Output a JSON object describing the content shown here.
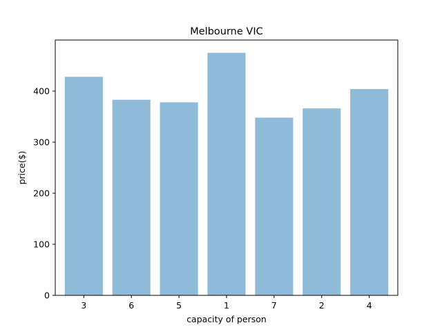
{
  "chart_data": {
    "type": "bar",
    "title": "Melbourne VIC",
    "xlabel": "capacity of person",
    "ylabel": "price($)",
    "categories": [
      "3",
      "6",
      "5",
      "1",
      "7",
      "2",
      "4"
    ],
    "values": [
      428,
      383,
      378,
      475,
      348,
      366,
      404
    ],
    "ylim": [
      0,
      500
    ],
    "yticks": [
      0,
      100,
      200,
      300,
      400
    ],
    "bar_color": "#8fbbd9",
    "grid": false,
    "legend": false
  }
}
